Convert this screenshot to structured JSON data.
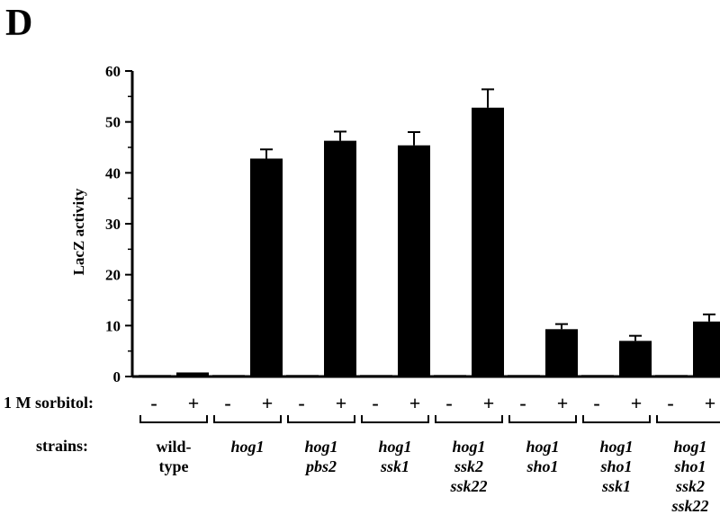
{
  "panel_label": "D",
  "row_labels": {
    "treatment": "1 M sorbitol:",
    "strains": "strains:"
  },
  "sign_labels": {
    "minus": "-",
    "plus": "+"
  },
  "strain_groups": [
    {
      "lines": [
        "wild-",
        "type"
      ],
      "italic": false
    },
    {
      "lines": [
        "hog1"
      ],
      "italic": true
    },
    {
      "lines": [
        "hog1",
        "pbs2"
      ],
      "italic": true
    },
    {
      "lines": [
        "hog1",
        "ssk1"
      ],
      "italic": true
    },
    {
      "lines": [
        "hog1",
        "ssk2",
        "ssk22"
      ],
      "italic": true
    },
    {
      "lines": [
        "hog1",
        "sho1"
      ],
      "italic": true
    },
    {
      "lines": [
        "hog1",
        "sho1",
        "ssk1"
      ],
      "italic": true
    },
    {
      "lines": [
        "hog1",
        "sho1",
        "ssk2",
        "ssk22"
      ],
      "italic": true
    }
  ],
  "chart_data": {
    "type": "bar",
    "title": "",
    "xlabel": "",
    "ylabel": "LacZ activity",
    "ylim": [
      0,
      60
    ],
    "yticks": [
      0,
      10,
      20,
      30,
      40,
      50,
      60
    ],
    "categories": [
      "wild-type",
      "hog1",
      "hog1 pbs2",
      "hog1 ssk1",
      "hog1 ssk2 ssk22",
      "hog1 sho1",
      "hog1 sho1 ssk1",
      "hog1 sho1 ssk2 ssk22"
    ],
    "series": [
      {
        "values": [
          0.3,
          0.3,
          0.3,
          0.3,
          0.3,
          0.3,
          0.3,
          0.3
        ],
        "errors": [
          0,
          0,
          0,
          0,
          0,
          0,
          0,
          0
        ]
      },
      {
        "values": [
          0.8,
          42.8,
          46.3,
          45.4,
          52.8,
          9.3,
          7.0,
          10.8
        ],
        "errors": [
          0,
          1.8,
          1.8,
          2.6,
          3.6,
          1.0,
          1.0,
          1.4
        ]
      }
    ],
    "bar_color": "#000000"
  }
}
